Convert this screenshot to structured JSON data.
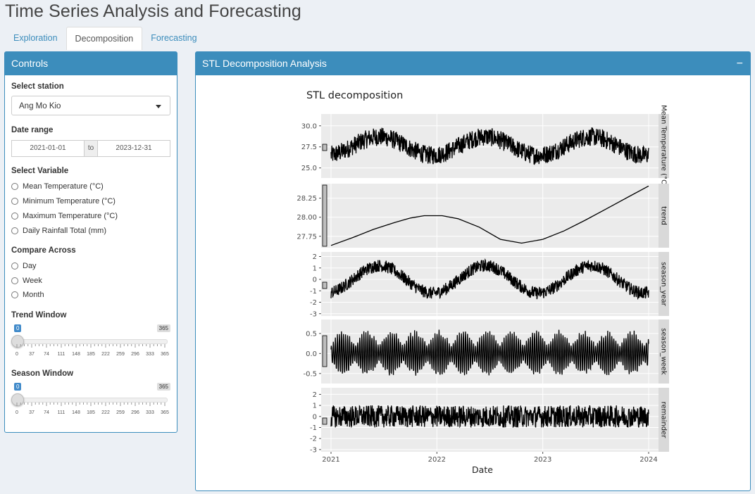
{
  "app": {
    "title": "Time Series Analysis and Forecasting"
  },
  "tabs": [
    {
      "label": "Exploration",
      "active": false
    },
    {
      "label": "Decomposition",
      "active": true
    },
    {
      "label": "Forecasting",
      "active": false
    }
  ],
  "controls": {
    "title": "Controls",
    "station": {
      "label": "Select station",
      "value": "Ang Mo Kio"
    },
    "date_range": {
      "label": "Date range",
      "start": "2021-01-01",
      "sep": "to",
      "end": "2023-12-31"
    },
    "variable": {
      "label": "Select Variable",
      "options": [
        "Mean Temperature (°C)",
        "Minimum Temperature (°C)",
        "Maximum Temperature (°C)",
        "Daily Rainfall Total (mm)"
      ]
    },
    "compare": {
      "label": "Compare Across",
      "options": [
        "Day",
        "Week",
        "Month"
      ]
    },
    "trend_window": {
      "label": "Trend Window",
      "value": 0,
      "min": 0,
      "max": 365,
      "ticks": [
        "0",
        "37",
        "74",
        "111",
        "148",
        "185",
        "222",
        "259",
        "296",
        "333",
        "365"
      ]
    },
    "season_window": {
      "label": "Season Window",
      "value": 0,
      "min": 0,
      "max": 365,
      "ticks": [
        "0",
        "37",
        "74",
        "111",
        "148",
        "185",
        "222",
        "259",
        "296",
        "333",
        "365"
      ]
    }
  },
  "main": {
    "title": "STL Decomposition Analysis",
    "collapse_icon": "minus-icon"
  },
  "chart_data": {
    "type": "line",
    "title": "STL decomposition",
    "xlabel": "Date",
    "x_ticks": [
      "2021",
      "2022",
      "2023",
      "2024"
    ],
    "x_range": [
      2021.0,
      2024.0
    ],
    "panels": [
      {
        "strip": "Mean Temperature (°C)",
        "ylim": [
          23.8,
          31.4
        ],
        "yticks": [
          "25.0",
          "27.5",
          "30.0"
        ],
        "ytick_values": [
          25.0,
          27.5,
          30.0
        ],
        "level": 27.6,
        "noise": 1.1,
        "seasonal_amp": 1.1
      },
      {
        "strip": "trend",
        "ylim": [
          27.6,
          28.44
        ],
        "yticks": [
          "27.75",
          "28.00",
          "28.25"
        ],
        "ytick_values": [
          27.75,
          28.0,
          28.25
        ],
        "points": [
          [
            2021.0,
            27.63
          ],
          [
            2021.2,
            27.73
          ],
          [
            2021.4,
            27.84
          ],
          [
            2021.6,
            27.93
          ],
          [
            2021.75,
            27.99
          ],
          [
            2021.88,
            28.02
          ],
          [
            2022.05,
            28.02
          ],
          [
            2022.2,
            27.98
          ],
          [
            2022.4,
            27.87
          ],
          [
            2022.6,
            27.71
          ],
          [
            2022.8,
            27.66
          ],
          [
            2023.0,
            27.71
          ],
          [
            2023.2,
            27.82
          ],
          [
            2023.4,
            27.96
          ],
          [
            2023.6,
            28.11
          ],
          [
            2023.8,
            28.26
          ],
          [
            2024.0,
            28.41
          ]
        ]
      },
      {
        "strip": "season_year",
        "ylim": [
          -3.2,
          2.4
        ],
        "yticks": [
          "-3",
          "-2",
          "-1",
          "0",
          "1",
          "2"
        ],
        "ytick_values": [
          -3,
          -2,
          -1,
          0,
          1,
          2
        ],
        "level": 0,
        "noise": 0.55,
        "seasonal_amp": 1.2
      },
      {
        "strip": "season_week",
        "ylim": [
          -0.75,
          0.85
        ],
        "yticks": [
          "-0.5",
          "0.0",
          "0.5"
        ],
        "ytick_values": [
          -0.5,
          0.0,
          0.5
        ],
        "level": 0,
        "weekly": true
      },
      {
        "strip": "remainder",
        "ylim": [
          -3.2,
          2.6
        ],
        "yticks": [
          "-3",
          "-2",
          "-1",
          "0",
          "1",
          "2"
        ],
        "ytick_values": [
          -3,
          -2,
          -1,
          0,
          1,
          2
        ],
        "level": 0,
        "noise": 1.0,
        "seasonal_amp": 0
      }
    ]
  }
}
